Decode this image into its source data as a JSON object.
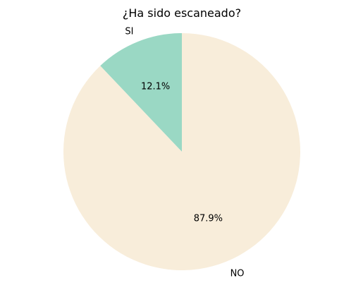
{
  "chart_data": {
    "type": "pie",
    "title": "¿Ha sido escaneado?",
    "slices": [
      {
        "label": "SI",
        "value": 12.1,
        "pct_label": "12.1%",
        "color": "#9ad8c4"
      },
      {
        "label": "NO",
        "value": 87.9,
        "pct_label": "87.9%",
        "color": "#f8edda"
      }
    ],
    "start_angle_deg": 90,
    "direction": "counterclockwise",
    "legend": "none"
  }
}
